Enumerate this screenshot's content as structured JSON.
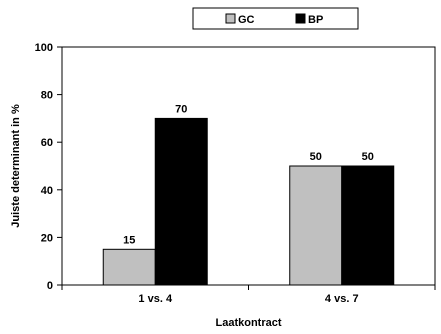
{
  "chart_data": {
    "type": "bar",
    "title": "",
    "xlabel": "Laatkontract",
    "ylabel": "Juiste determinant in %",
    "ylim": [
      0,
      100
    ],
    "yticks": [
      0,
      20,
      40,
      60,
      80,
      100
    ],
    "grid": false,
    "legend_position": "top-right",
    "categories": [
      "1 vs. 4",
      "4 vs. 7"
    ],
    "series": [
      {
        "name": "GC",
        "values": [
          15,
          50
        ],
        "color": "#c0c0c0"
      },
      {
        "name": "BP",
        "values": [
          70,
          50
        ],
        "color": "#000000"
      }
    ],
    "data_labels": [
      [
        "15",
        "50"
      ],
      [
        "70",
        "50"
      ]
    ]
  }
}
